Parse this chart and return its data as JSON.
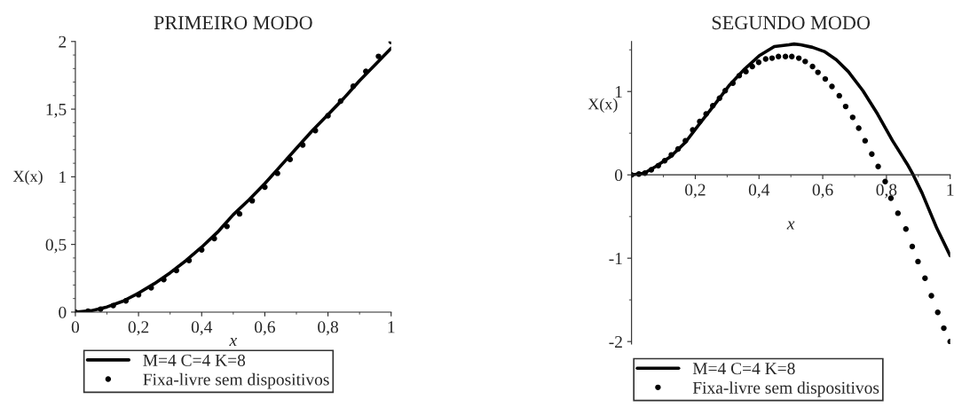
{
  "chart_data": [
    {
      "type": "line",
      "title": "PRIMEIRO MODO",
      "xlabel": "x",
      "ylabel": "X(x)",
      "xlim": [
        0,
        1
      ],
      "ylim": [
        0,
        2
      ],
      "xticks": [
        0,
        {
          "value": 0.2,
          "label": "0,2"
        },
        {
          "value": 0.4,
          "label": "0,4"
        },
        {
          "value": 0.6,
          "label": "0,6"
        },
        {
          "value": 0.8,
          "label": "0,8"
        },
        1
      ],
      "yticks": [
        0,
        {
          "value": 0.5,
          "label": "0,5"
        },
        1,
        {
          "value": 1.5,
          "label": "1,5"
        },
        2
      ],
      "legend": "bottom",
      "grid": false,
      "series": [
        {
          "name": "M=4 C=4 K=8",
          "color": "#000000",
          "line_style": "solid",
          "x": [
            0,
            0.05,
            0.1,
            0.15,
            0.2,
            0.25,
            0.3,
            0.35,
            0.4,
            0.45,
            0.5,
            0.55,
            0.6,
            0.65,
            0.7,
            0.75,
            0.8,
            0.85,
            0.9,
            0.95,
            1.0
          ],
          "values": [
            0,
            0.01,
            0.038,
            0.08,
            0.14,
            0.21,
            0.29,
            0.38,
            0.48,
            0.59,
            0.72,
            0.83,
            0.95,
            1.08,
            1.21,
            1.34,
            1.46,
            1.58,
            1.71,
            1.83,
            1.95
          ]
        },
        {
          "name": "Fixa-livre sem dispositivos",
          "type": "scatter",
          "color": "#000000",
          "marker": "circle",
          "x": [
            0,
            0.04,
            0.08,
            0.12,
            0.16,
            0.2,
            0.24,
            0.28,
            0.32,
            0.36,
            0.4,
            0.44,
            0.48,
            0.52,
            0.56,
            0.6,
            0.64,
            0.68,
            0.72,
            0.76,
            0.8,
            0.84,
            0.88,
            0.92,
            0.96,
            1.0
          ],
          "values": [
            0,
            0.006,
            0.022,
            0.048,
            0.083,
            0.128,
            0.18,
            0.24,
            0.307,
            0.381,
            0.46,
            0.544,
            0.633,
            0.726,
            0.823,
            0.923,
            1.026,
            1.129,
            1.235,
            1.342,
            1.451,
            1.56,
            1.669,
            1.779,
            1.89,
            2.0
          ]
        }
      ]
    },
    {
      "type": "line",
      "title": "SEGUNDO MODO",
      "xlabel": "x",
      "ylabel": "X(x)",
      "xlim": [
        0,
        1
      ],
      "ylim": [
        -2.03,
        1.6
      ],
      "xticks": [
        {
          "value": 0.2,
          "label": "0,2"
        },
        {
          "value": 0.4,
          "label": "0,4"
        },
        {
          "value": 0.6,
          "label": "0,6"
        },
        {
          "value": 0.8,
          "label": "0,8"
        },
        1
      ],
      "yticks": [
        -2,
        -1,
        0,
        1
      ],
      "legend": "bottom",
      "grid": false,
      "series": [
        {
          "name": "M=4 C=4 K=8",
          "color": "#000000",
          "line_style": "solid",
          "x": [
            0,
            0.04,
            0.076,
            0.123,
            0.169,
            0.215,
            0.262,
            0.308,
            0.355,
            0.401,
            0.448,
            0.494,
            0.51,
            0.531,
            0.568,
            0.605,
            0.643,
            0.68,
            0.726,
            0.772,
            0.819,
            0.865,
            0.884,
            0.912,
            0.958,
            1.0
          ],
          "values": [
            0,
            0.02,
            0.1,
            0.22,
            0.39,
            0.62,
            0.85,
            1.08,
            1.27,
            1.43,
            1.54,
            1.56,
            1.57,
            1.56,
            1.53,
            1.48,
            1.38,
            1.24,
            1.01,
            0.73,
            0.41,
            0.13,
            0,
            -0.22,
            -0.64,
            -0.97
          ]
        },
        {
          "name": "Fixa-livre sem dispositivos",
          "type": "scatter",
          "color": "#000000",
          "marker": "circle",
          "x": [
            0,
            0.023,
            0.042,
            0.062,
            0.084,
            0.104,
            0.125,
            0.146,
            0.169,
            0.192,
            0.214,
            0.234,
            0.255,
            0.276,
            0.294,
            0.318,
            0.338,
            0.359,
            0.379,
            0.399,
            0.421,
            0.441,
            0.461,
            0.483,
            0.503,
            0.525,
            0.545,
            0.568,
            0.585,
            0.608,
            0.629,
            0.652,
            0.672,
            0.694,
            0.713,
            0.733,
            0.754,
            0.774,
            0.796,
            0.814,
            0.836,
            0.861,
            0.881,
            0.899,
            0.921,
            0.941,
            0.961,
            0.98,
            1.0
          ],
          "values": [
            0,
            0.01,
            0.02,
            0.06,
            0.11,
            0.17,
            0.24,
            0.31,
            0.41,
            0.54,
            0.64,
            0.73,
            0.83,
            0.92,
            1.01,
            1.1,
            1.19,
            1.24,
            1.3,
            1.35,
            1.39,
            1.4,
            1.42,
            1.42,
            1.42,
            1.4,
            1.36,
            1.3,
            1.23,
            1.15,
            1.06,
            0.95,
            0.82,
            0.69,
            0.56,
            0.41,
            0.25,
            0.1,
            -0.08,
            -0.28,
            -0.46,
            -0.65,
            -0.86,
            -1.04,
            -1.24,
            -1.45,
            -1.65,
            -1.84,
            -2.0
          ]
        }
      ]
    }
  ]
}
